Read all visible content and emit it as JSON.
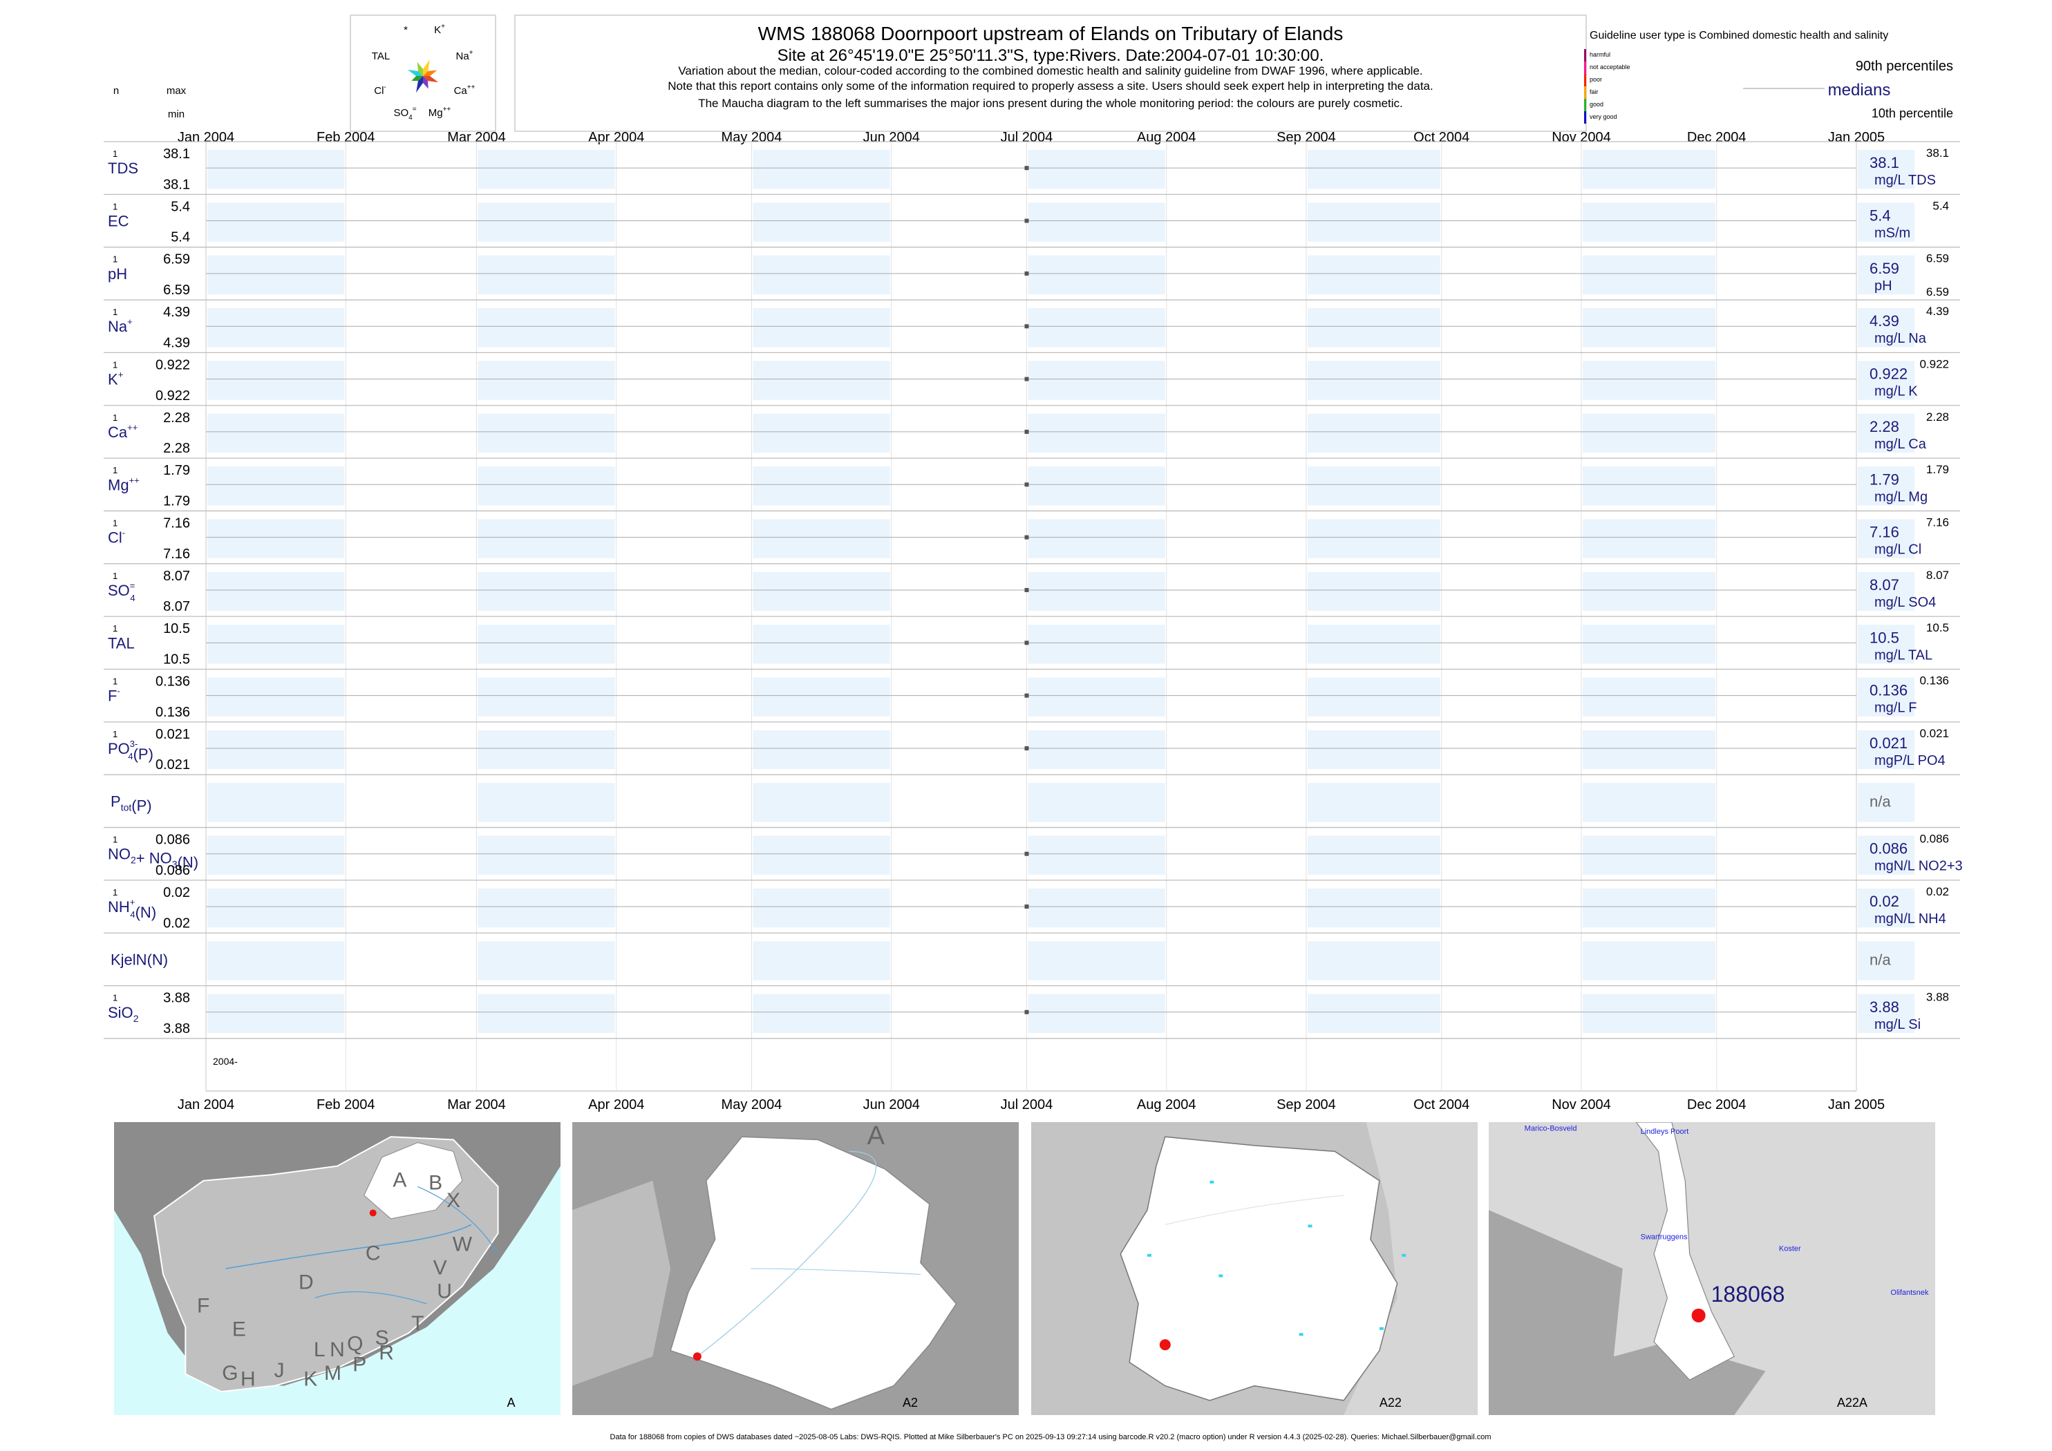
{
  "header": {
    "title": "WMS 188068  Doornpoort upstream of Elands on Tributary of Elands",
    "subtitle": "Site at 26°45'19.0\"E 25°50'11.3\"S, type:Rivers. Date:2004-07-01 10:30:00.",
    "note1": "Variation about the median,  colour-coded according to the combined domestic health and salinity guideline from DWAF 1996, where applicable.",
    "note2": "Note that this report contains only some of the information required to properly assess a site. Users should seek expert help in interpreting the data.",
    "note3": "The Maucha diagram to the left summarises the major ions present during the whole monitoring period: the colours are purely cosmetic."
  },
  "maucha": {
    "labels": {
      "star": "*",
      "k": "K",
      "k_sup": "+",
      "na": "Na",
      "na_sup": "+",
      "ca": "Ca",
      "ca_sup": "++",
      "mg": "Mg",
      "mg_sup": "++",
      "so4": "SO",
      "so4_sub": "4",
      "so4_sup": "=",
      "cl": "Cl",
      "cl_sup": "-",
      "tal": "TAL"
    },
    "colors": [
      "#ffd21f",
      "#ff7f0e",
      "#e04a2a",
      "#7a3cc0",
      "#1c2fa8",
      "#2ca02c",
      "#2ad0d8",
      "#9ad13a"
    ]
  },
  "column_heads": {
    "n": "n",
    "max": "max",
    "min": "min"
  },
  "legend": {
    "guideline_title": "Guideline user type is Combined domestic health and salinity",
    "classes": [
      {
        "label": "harmful",
        "color": "#9b0a5e"
      },
      {
        "label": "not acceptable",
        "color": "#ff1493"
      },
      {
        "label": "poor",
        "color": "#ff2000"
      },
      {
        "label": "fair",
        "color": "#ffa500"
      },
      {
        "label": "good",
        "color": "#2bb32b"
      },
      {
        "label": "very good",
        "color": "#1010cc"
      }
    ],
    "p90": "90th percentiles",
    "medians": "medians",
    "p10": "10th percentile"
  },
  "chart_data": {
    "type": "scatter",
    "title": "",
    "x_range": [
      "2004-01-01",
      "2005-01-01"
    ],
    "x_ticks": [
      "Jan 2004",
      "Feb 2004",
      "Mar 2004",
      "Apr 2004",
      "May 2004",
      "Jun 2004",
      "Jul 2004",
      "Aug 2004",
      "Sep 2004",
      "Oct 2004",
      "Nov 2004",
      "Dec 2004",
      "Jan 2005"
    ],
    "bottom_year_label": "2004-",
    "sample_date": "2004-07-01",
    "series": [
      {
        "label": "TDS",
        "n": "1",
        "max": "38.1",
        "min": "38.1",
        "median": "38.1",
        "p90": "38.1",
        "p10": "",
        "unit": "mg/L TDS",
        "value": 38.1
      },
      {
        "label": "EC",
        "n": "1",
        "max": "5.4",
        "min": "5.4",
        "median": "5.4",
        "p90": "5.4",
        "p10": "",
        "unit": "mS/m",
        "value": 5.4
      },
      {
        "label": "pH",
        "n": "1",
        "max": "6.59",
        "min": "6.59",
        "median": "6.59",
        "p90": "6.59",
        "p10": "6.59",
        "unit": "pH",
        "value": 6.59
      },
      {
        "label": "Na",
        "sup": "+",
        "n": "1",
        "max": "4.39",
        "min": "4.39",
        "median": "4.39",
        "p90": "4.39",
        "p10": "",
        "unit": "mg/L Na",
        "value": 4.39
      },
      {
        "label": "K",
        "sup": "+",
        "n": "1",
        "max": "0.922",
        "min": "0.922",
        "median": "0.922",
        "p90": "0.922",
        "p10": "",
        "unit": "mg/L K",
        "value": 0.922
      },
      {
        "label": "Ca",
        "sup": "++",
        "n": "1",
        "max": "2.28",
        "min": "2.28",
        "median": "2.28",
        "p90": "2.28",
        "p10": "",
        "unit": "mg/L Ca",
        "value": 2.28
      },
      {
        "label": "Mg",
        "sup": "++",
        "n": "1",
        "max": "1.79",
        "min": "1.79",
        "median": "1.79",
        "p90": "1.79",
        "p10": "",
        "unit": "mg/L Mg",
        "value": 1.79
      },
      {
        "label": "Cl",
        "sup": "-",
        "n": "1",
        "max": "7.16",
        "min": "7.16",
        "median": "7.16",
        "p90": "7.16",
        "p10": "",
        "unit": "mg/L Cl",
        "value": 7.16
      },
      {
        "label": "SO",
        "sub": "4",
        "sup": "=",
        "n": "1",
        "max": "8.07",
        "min": "8.07",
        "median": "8.07",
        "p90": "8.07",
        "p10": "",
        "unit": "mg/L SO4",
        "value": 8.07
      },
      {
        "label": "TAL",
        "n": "1",
        "max": "10.5",
        "min": "10.5",
        "median": "10.5",
        "p90": "10.5",
        "p10": "",
        "unit": "mg/L TAL",
        "value": 10.5
      },
      {
        "label": "F",
        "sup": "-",
        "n": "1",
        "max": "0.136",
        "min": "0.136",
        "median": "0.136",
        "p90": "0.136",
        "p10": "",
        "unit": "mg/L F",
        "value": 0.136
      },
      {
        "label": "PO",
        "sub": "4",
        "sup": "3-",
        "suffix": "(P)",
        "n": "1",
        "max": "0.021",
        "min": "0.021",
        "median": "0.021",
        "p90": "0.021",
        "p10": "",
        "unit": "mgP/L PO4",
        "value": 0.021
      },
      {
        "label": "P",
        "sub": "tot",
        "suffix": "(P)",
        "n": "",
        "max": "",
        "min": "",
        "median": "n/a",
        "p90": "",
        "p10": "",
        "unit": "",
        "value": null
      },
      {
        "label": "NO",
        "sub": "2",
        "suffix": "+ NO",
        "sub2": "3",
        "suffix2": "(N)",
        "n": "1",
        "max": "0.086",
        "min": "0.086",
        "median": "0.086",
        "p90": "0.086",
        "p10": "",
        "unit": "mgN/L NO2+3",
        "value": 0.086
      },
      {
        "label": "NH",
        "sub": "4",
        "sup": "+",
        "suffix": "(N)",
        "n": "1",
        "max": "0.02",
        "min": "0.02",
        "median": "0.02",
        "p90": "0.02",
        "p10": "",
        "unit": "mgN/L NH4",
        "value": 0.02
      },
      {
        "label": "KjelN(N)",
        "n": "",
        "max": "",
        "min": "",
        "median": "n/a",
        "p90": "",
        "p10": "",
        "unit": "",
        "value": null
      },
      {
        "label": "SiO",
        "sub": "2",
        "n": "1",
        "max": "3.88",
        "min": "3.88",
        "median": "3.88",
        "p90": "3.88",
        "p10": "",
        "unit": "mg/L Si",
        "value": 3.88
      }
    ]
  },
  "maps": [
    {
      "caption": "A",
      "letters": [
        "A",
        "B",
        "X",
        "W",
        "C",
        "V",
        "U",
        "D",
        "T",
        "F",
        "E",
        "L",
        "N",
        "Q",
        "S",
        "R",
        "G",
        "H",
        "J",
        "K",
        "M",
        "P"
      ]
    },
    {
      "caption": "A2",
      "letters": [
        "A"
      ]
    },
    {
      "caption": "A22",
      "letters": []
    },
    {
      "caption": "A22A",
      "site_label": "188068",
      "towns": [
        "Marico-Bosveld",
        "Lindleys Poort",
        "Swartruggens",
        "Koster",
        "Olifantsnek"
      ]
    }
  ],
  "footer": "Data for 188068 from copies of DWS databases dated ~2025-08-05 Labs: DWS-RQIS. Plotted at Mike Silberbauer's PC on 2025-09-13 09:27:14 using barcode.R v20.2 (macro option) under R version 4.4.3 (2025-02-28). Queries: Michael.Silberbauer@gmail.com"
}
